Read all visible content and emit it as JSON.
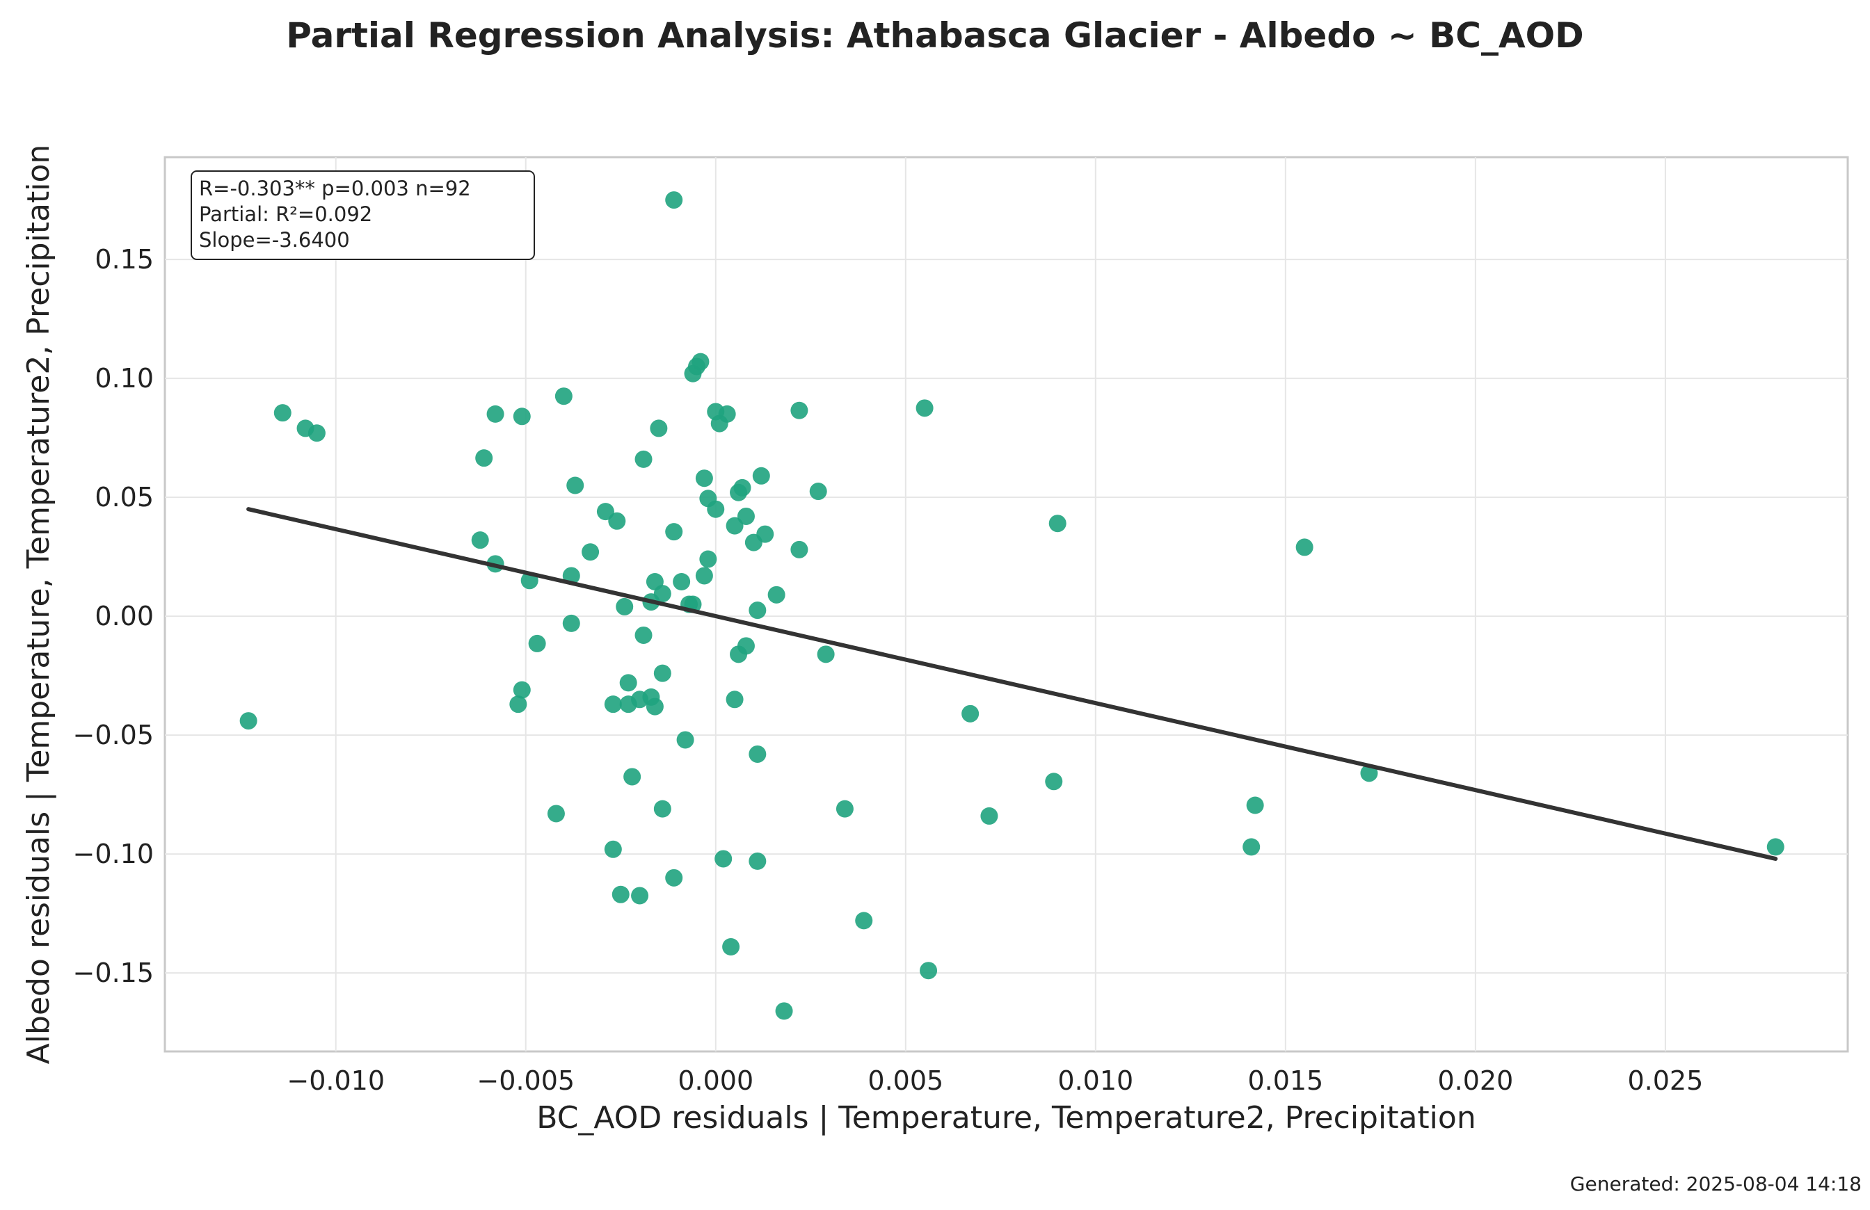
{
  "figure": {
    "title": "Partial Regression Analysis: Athabasca Glacier - Albedo ~ BC_AOD",
    "footer": "Generated: 2025-08-04 14:18"
  },
  "stats_box": {
    "line1": "R=-0.303**  p=0.003  n=92",
    "line2": "Partial: R²=0.092",
    "line3": "Slope=-3.6400"
  },
  "colors": {
    "points": "#1fa37e",
    "fit_line": "#333333",
    "grid": "#e6e6e6",
    "frame": "#c8c8c8"
  },
  "chart_data": {
    "type": "scatter",
    "title": "Partial Regression Analysis: Athabasca Glacier - Albedo ~ BC_AOD",
    "xlabel": "BC_AOD residuals | Temperature, Temperature2, Precipitation",
    "ylabel": "Albedo residuals | Temperature, Temperature2, Precipitation",
    "xlim": [
      -0.0145,
      0.0298
    ],
    "ylim": [
      -0.183,
      0.193
    ],
    "x_ticks": [
      -0.01,
      -0.005,
      0.0,
      0.005,
      0.01,
      0.015,
      0.02,
      0.025
    ],
    "x_tick_labels": [
      "−0.010",
      "−0.005",
      "0.000",
      "0.005",
      "0.010",
      "0.015",
      "0.020",
      "0.025"
    ],
    "y_ticks": [
      -0.15,
      -0.1,
      -0.05,
      0.0,
      0.05,
      0.1,
      0.15
    ],
    "y_tick_labels": [
      "−0.15",
      "−0.10",
      "−0.05",
      "0.00",
      "0.05",
      "0.10",
      "0.15"
    ],
    "grid": true,
    "fit_line": {
      "x": [
        -0.0123,
        0.0279
      ],
      "y": [
        0.045,
        -0.102
      ]
    },
    "points": [
      [
        -0.0123,
        -0.044
      ],
      [
        -0.0114,
        0.0855
      ],
      [
        -0.0108,
        0.079
      ],
      [
        -0.0105,
        0.077
      ],
      [
        -0.0062,
        0.032
      ],
      [
        -0.0061,
        0.0665
      ],
      [
        -0.0058,
        0.085
      ],
      [
        -0.0058,
        0.022
      ],
      [
        -0.0052,
        -0.037
      ],
      [
        -0.0051,
        0.084
      ],
      [
        -0.0051,
        -0.031
      ],
      [
        -0.0049,
        0.015
      ],
      [
        -0.0047,
        -0.0115
      ],
      [
        -0.0042,
        -0.083
      ],
      [
        -0.004,
        0.0925
      ],
      [
        -0.0038,
        0.017
      ],
      [
        -0.0038,
        -0.003
      ],
      [
        -0.0037,
        0.055
      ],
      [
        -0.0033,
        0.027
      ],
      [
        -0.0029,
        0.044
      ],
      [
        -0.0027,
        -0.037
      ],
      [
        -0.0027,
        -0.098
      ],
      [
        -0.0026,
        0.04
      ],
      [
        -0.0025,
        -0.117
      ],
      [
        -0.0024,
        0.004
      ],
      [
        -0.0023,
        -0.037
      ],
      [
        -0.0023,
        -0.028
      ],
      [
        -0.0022,
        -0.0675
      ],
      [
        -0.002,
        -0.035
      ],
      [
        -0.002,
        -0.1175
      ],
      [
        -0.0019,
        -0.008
      ],
      [
        -0.0019,
        0.066
      ],
      [
        -0.0017,
        0.006
      ],
      [
        -0.0017,
        -0.034
      ],
      [
        -0.0016,
        0.0145
      ],
      [
        -0.0016,
        -0.038
      ],
      [
        -0.0015,
        0.079
      ],
      [
        -0.0014,
        0.0095
      ],
      [
        -0.0014,
        -0.024
      ],
      [
        -0.0014,
        -0.081
      ],
      [
        -0.0011,
        0.175
      ],
      [
        -0.0011,
        0.0355
      ],
      [
        -0.0011,
        -0.11
      ],
      [
        -0.0009,
        0.0145
      ],
      [
        -0.0008,
        -0.052
      ],
      [
        -0.0007,
        0.005
      ],
      [
        -0.0006,
        0.102
      ],
      [
        -0.0006,
        0.005
      ],
      [
        -0.0005,
        0.105
      ],
      [
        -0.0004,
        0.107
      ],
      [
        -0.0003,
        0.058
      ],
      [
        -0.0003,
        0.017
      ],
      [
        -0.0002,
        0.0495
      ],
      [
        -0.0002,
        0.024
      ],
      [
        0.0,
        0.086
      ],
      [
        0.0,
        0.045
      ],
      [
        0.0001,
        0.081
      ],
      [
        0.0002,
        -0.102
      ],
      [
        0.0003,
        0.085
      ],
      [
        0.0004,
        -0.139
      ],
      [
        0.0005,
        -0.035
      ],
      [
        0.0005,
        0.038
      ],
      [
        0.0006,
        -0.016
      ],
      [
        0.0006,
        0.052
      ],
      [
        0.0007,
        0.054
      ],
      [
        0.0008,
        0.042
      ],
      [
        0.0008,
        -0.0125
      ],
      [
        0.001,
        0.031
      ],
      [
        0.0011,
        0.0025
      ],
      [
        0.0011,
        -0.058
      ],
      [
        0.0011,
        -0.103
      ],
      [
        0.0012,
        0.059
      ],
      [
        0.0013,
        0.0345
      ],
      [
        0.0016,
        0.009
      ],
      [
        0.0018,
        -0.166
      ],
      [
        0.0022,
        0.028
      ],
      [
        0.0022,
        0.0865
      ],
      [
        0.0027,
        0.0525
      ],
      [
        0.0029,
        -0.016
      ],
      [
        0.0034,
        -0.081
      ],
      [
        0.0039,
        -0.128
      ],
      [
        0.0055,
        0.0875
      ],
      [
        0.0056,
        -0.149
      ],
      [
        0.0067,
        -0.041
      ],
      [
        0.0072,
        -0.084
      ],
      [
        0.0089,
        -0.0695
      ],
      [
        0.009,
        0.039
      ],
      [
        0.0141,
        -0.097
      ],
      [
        0.0142,
        -0.0795
      ],
      [
        0.0155,
        0.029
      ],
      [
        0.0172,
        -0.066
      ],
      [
        0.0279,
        -0.097
      ]
    ]
  }
}
